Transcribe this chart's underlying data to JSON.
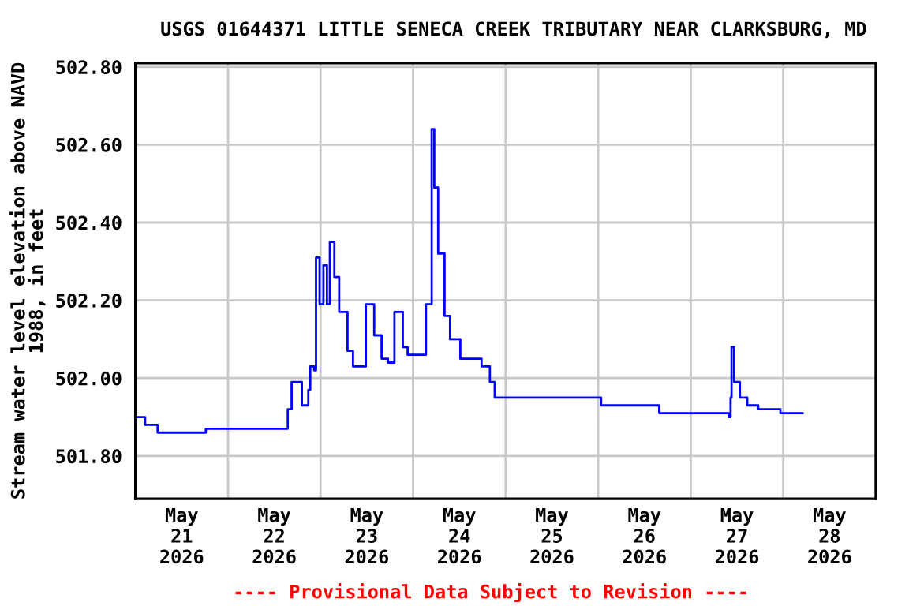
{
  "chart_data": {
    "type": "step",
    "title": "USGS 01644371 LITTLE SENECA CREEK TRIBUTARY NEAR CLARKSBURG, MD",
    "ylabel": "Stream water level elevation above NAVD\n1988, in feet",
    "annotations": [
      "---- Provisional Data Subject to Revision ----"
    ],
    "series": [
      {
        "color": "#0000ff",
        "x": [
          "2026-05-21T00:00",
          "2026-05-21T02:30",
          "2026-05-21T05:45",
          "2026-05-21T18:00",
          "2026-05-21T18:15",
          "2026-05-22T14:40",
          "2026-05-22T15:30",
          "2026-05-22T16:30",
          "2026-05-22T19:10",
          "2026-05-22T20:50",
          "2026-05-22T21:20",
          "2026-05-22T22:20",
          "2026-05-22T22:50",
          "2026-05-22T23:45",
          "2026-05-23T00:45",
          "2026-05-23T01:40",
          "2026-05-23T02:25",
          "2026-05-23T03:35",
          "2026-05-23T04:50",
          "2026-05-23T07:00",
          "2026-05-23T08:25",
          "2026-05-23T10:20",
          "2026-05-23T11:45",
          "2026-05-23T13:55",
          "2026-05-23T15:50",
          "2026-05-23T17:30",
          "2026-05-23T19:10",
          "2026-05-23T21:20",
          "2026-05-23T22:35",
          "2026-05-24T01:55",
          "2026-05-24T03:20",
          "2026-05-24T04:50",
          "2026-05-24T05:30",
          "2026-05-24T06:30",
          "2026-05-24T08:10",
          "2026-05-24T09:35",
          "2026-05-24T12:15",
          "2026-05-24T17:45",
          "2026-05-24T19:55",
          "2026-05-24T21:10",
          "2026-05-26T00:30",
          "2026-05-26T00:45",
          "2026-05-26T15:35",
          "2026-05-26T15:50",
          "2026-05-27T09:20",
          "2026-05-27T09:50",
          "2026-05-27T10:20",
          "2026-05-27T10:35",
          "2026-05-27T11:15",
          "2026-05-27T12:45",
          "2026-05-27T14:40",
          "2026-05-27T17:30",
          "2026-05-27T23:00",
          "2026-05-27T23:15",
          "2026-05-28T05:00"
        ],
        "values": [
          501.9,
          501.88,
          501.86,
          501.86,
          501.87,
          501.87,
          501.92,
          501.99,
          501.93,
          501.97,
          502.03,
          502.02,
          502.31,
          502.19,
          502.29,
          502.19,
          502.35,
          502.26,
          502.17,
          502.07,
          502.03,
          502.03,
          502.19,
          502.11,
          502.05,
          502.04,
          502.17,
          502.08,
          502.06,
          502.06,
          502.19,
          502.64,
          502.49,
          502.32,
          502.16,
          502.1,
          502.05,
          502.03,
          501.99,
          501.95,
          501.95,
          501.93,
          501.93,
          501.91,
          501.91,
          501.9,
          501.95,
          502.08,
          501.99,
          501.95,
          501.93,
          501.92,
          501.92,
          501.91,
          501.91
        ]
      }
    ],
    "xlim": [
      "2026-05-21T00:00",
      "2026-05-29T00:00"
    ],
    "xticks": [
      {
        "value": "2026-05-21T12:00",
        "label": "May\n21\n2026"
      },
      {
        "value": "2026-05-22T00:00",
        "label": null
      },
      {
        "value": "2026-05-22T12:00",
        "label": "May\n22\n2026"
      },
      {
        "value": "2026-05-23T00:00",
        "label": null
      },
      {
        "value": "2026-05-23T12:00",
        "label": "May\n23\n2026"
      },
      {
        "value": "2026-05-24T00:00",
        "label": null
      },
      {
        "value": "2026-05-24T12:00",
        "label": "May\n24\n2026"
      },
      {
        "value": "2026-05-25T00:00",
        "label": null
      },
      {
        "value": "2026-05-25T12:00",
        "label": "May\n25\n2026"
      },
      {
        "value": "2026-05-26T00:00",
        "label": null
      },
      {
        "value": "2026-05-26T12:00",
        "label": "May\n26\n2026"
      },
      {
        "value": "2026-05-27T00:00",
        "label": null
      },
      {
        "value": "2026-05-27T12:00",
        "label": "May\n27\n2026"
      },
      {
        "value": "2026-05-28T00:00",
        "label": null
      },
      {
        "value": "2026-05-28T12:00",
        "label": "May\n28\n2026"
      }
    ],
    "ylim": [
      501.69,
      502.81
    ],
    "yticks": [
      {
        "value": 501.8,
        "label": "501.80"
      },
      {
        "value": 502.0,
        "label": "502.00"
      },
      {
        "value": 502.2,
        "label": "502.20"
      },
      {
        "value": 502.4,
        "label": "502.40"
      },
      {
        "value": 502.6,
        "label": "502.60"
      },
      {
        "value": 502.8,
        "label": "502.80"
      }
    ],
    "grid": true
  }
}
